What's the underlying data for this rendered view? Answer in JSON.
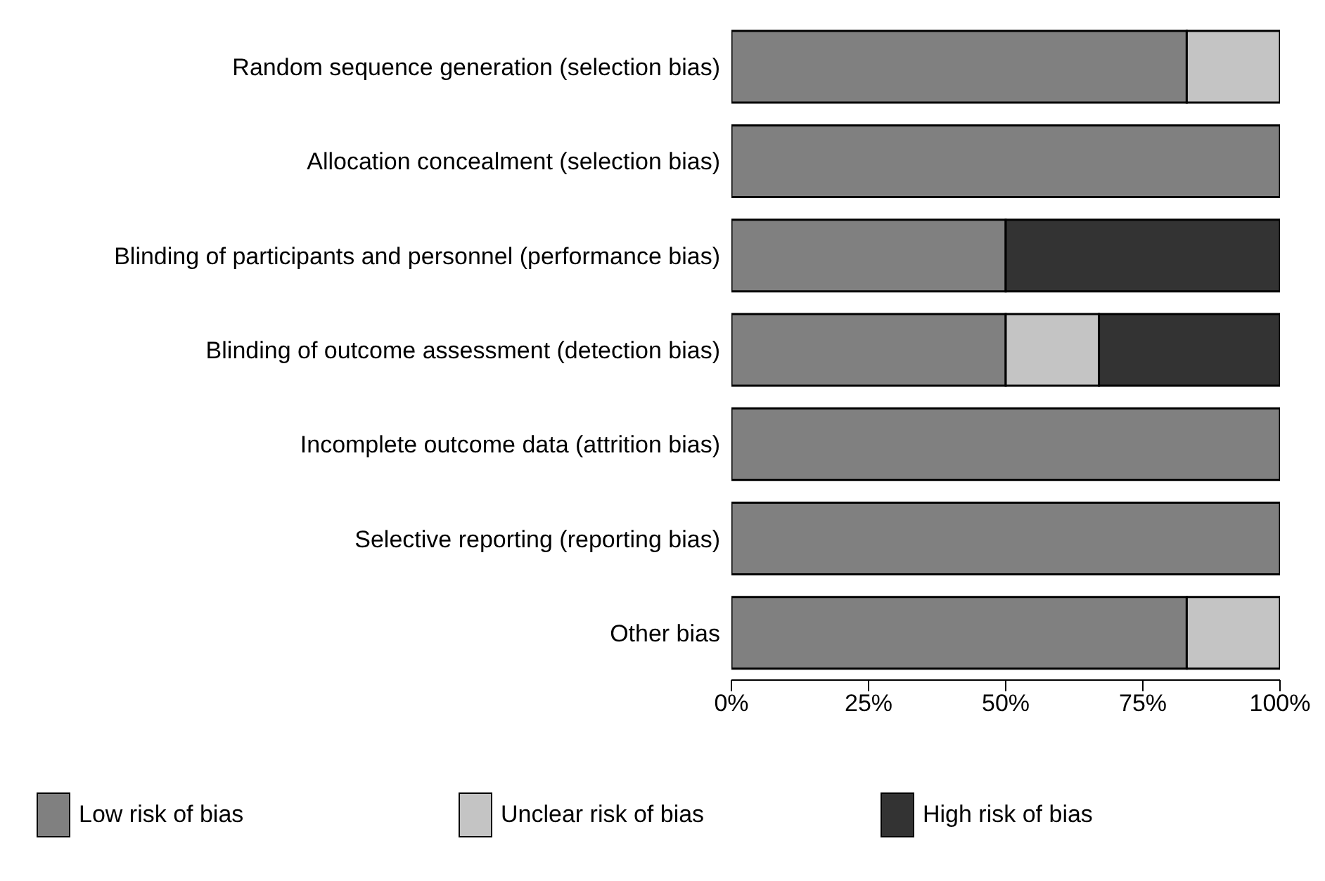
{
  "chart_data": {
    "type": "bar",
    "orientation": "horizontal",
    "stacked": true,
    "categories": [
      "Random sequence generation (selection bias)",
      "Allocation concealment (selection bias)",
      "Blinding of participants and personnel (performance bias)",
      "Blinding of outcome assessment (detection bias)",
      "Incomplete outcome data (attrition bias)",
      "Selective reporting (reporting bias)",
      "Other bias"
    ],
    "series": [
      {
        "name": "Low risk of bias",
        "color": "#808080",
        "values": [
          83,
          100,
          50,
          50,
          100,
          100,
          83
        ]
      },
      {
        "name": "Unclear risk of bias",
        "color": "#c4c4c4",
        "values": [
          17,
          null,
          null,
          17,
          null,
          null,
          17
        ]
      },
      {
        "name": "High risk of bias",
        "color": "#333333",
        "values": [
          null,
          null,
          50,
          33,
          null,
          null,
          null
        ]
      }
    ],
    "xlim": [
      0,
      100
    ],
    "xticks": [
      {
        "value": 0,
        "label": "0%"
      },
      {
        "value": 25,
        "label": "25%"
      },
      {
        "value": 50,
        "label": "50%"
      },
      {
        "value": 75,
        "label": "75%"
      },
      {
        "value": 100,
        "label": "100%"
      }
    ],
    "grid": false,
    "legend": "bottom"
  }
}
